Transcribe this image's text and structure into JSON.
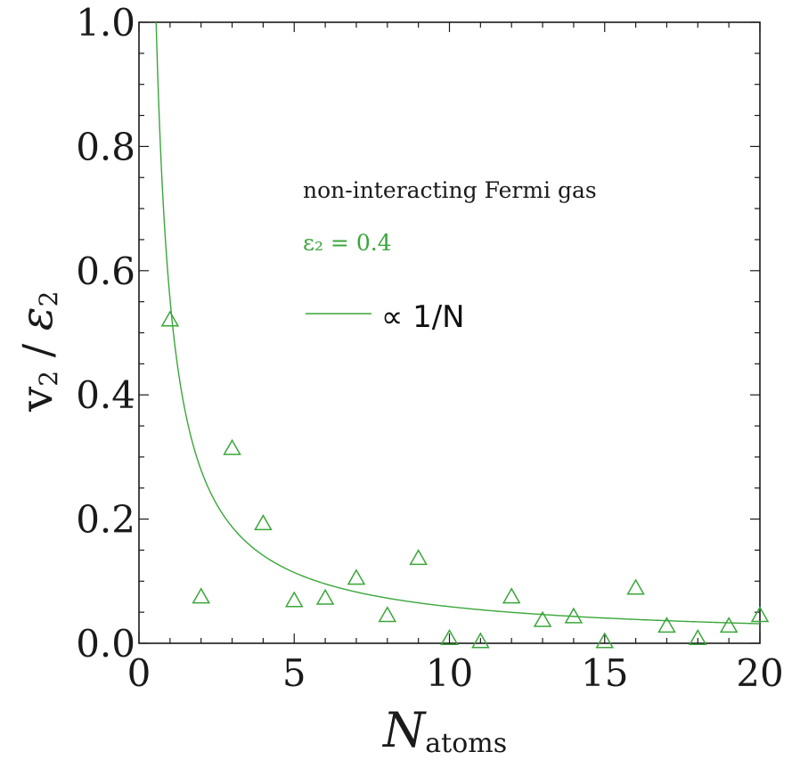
{
  "chart_data": {
    "type": "scatter",
    "xlabel": {
      "main": "N",
      "sub": "atoms"
    },
    "ylabel": {
      "main": "v",
      "sub": "2",
      "sep": " / ",
      "main2": "ε",
      "sub2": "2"
    },
    "xlim": [
      0,
      20
    ],
    "ylim": [
      0,
      1.0
    ],
    "x_ticks": [
      "0",
      "5",
      "10",
      "15",
      "20"
    ],
    "y_ticks": [
      "0.0",
      "0.2",
      "0.4",
      "0.6",
      "0.8",
      "1.0"
    ],
    "grid": false,
    "color": "#3aa63a",
    "annotations": {
      "system": "non-interacting Fermi gas",
      "eccentricity": "ε₂ = 0.4"
    },
    "legend": {
      "position": "top-right",
      "label": "∝ 1/N"
    },
    "series": [
      {
        "kind": "markers",
        "marker": "triangle-open",
        "x": [
          1,
          2,
          3,
          4,
          5,
          6,
          7,
          8,
          9,
          10,
          11,
          12,
          13,
          14,
          15,
          16,
          17,
          18,
          19,
          20
        ],
        "y": [
          0.518,
          0.072,
          0.311,
          0.19,
          0.066,
          0.07,
          0.102,
          0.042,
          0.134,
          0.005,
          0.0,
          0.072,
          0.034,
          0.04,
          0.0,
          0.086,
          0.025,
          0.005,
          0.025,
          0.042
        ]
      },
      {
        "kind": "fit",
        "formula": "1/N",
        "coefficient": 0.55,
        "offset": 0.004
      }
    ]
  }
}
